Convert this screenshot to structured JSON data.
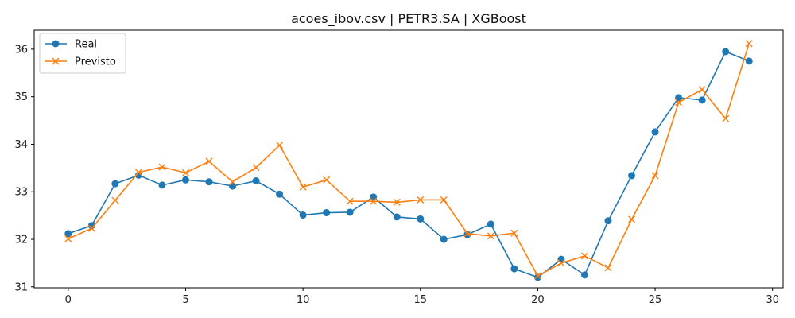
{
  "chart_data": {
    "type": "line",
    "title": "acoes_ibov.csv | PETR3.SA | XGBoost",
    "xlabel": "",
    "ylabel": "",
    "xlim": [
      -1.45,
      30.45
    ],
    "ylim": [
      30.98,
      36.4
    ],
    "x_ticks": [
      0,
      5,
      10,
      15,
      20,
      25,
      30
    ],
    "y_ticks": [
      31,
      32,
      33,
      34,
      35,
      36
    ],
    "grid": false,
    "legend_position": "top-left",
    "x": [
      0,
      1,
      2,
      3,
      4,
      5,
      6,
      7,
      8,
      9,
      10,
      11,
      12,
      13,
      14,
      15,
      16,
      17,
      18,
      19,
      20,
      21,
      22,
      23,
      24,
      25,
      26,
      27,
      28,
      29
    ],
    "series": [
      {
        "name": "Real",
        "color": "#1f77b4",
        "marker": "circle",
        "values": [
          32.12,
          32.29,
          33.17,
          33.35,
          33.14,
          33.25,
          33.21,
          33.12,
          33.23,
          32.95,
          32.51,
          32.56,
          32.57,
          32.89,
          32.47,
          32.43,
          32.0,
          32.1,
          32.32,
          31.38,
          31.2,
          31.58,
          31.25,
          32.39,
          33.34,
          34.26,
          34.98,
          34.93,
          35.95,
          35.75
        ]
      },
      {
        "name": "Previsto",
        "color": "#ff7f0e",
        "marker": "x",
        "values": [
          32.01,
          32.23,
          32.82,
          33.41,
          33.52,
          33.4,
          33.64,
          33.21,
          33.51,
          33.98,
          33.1,
          33.25,
          32.8,
          32.8,
          32.78,
          32.83,
          32.83,
          32.12,
          32.07,
          32.13,
          31.23,
          31.5,
          31.65,
          31.4,
          32.42,
          33.34,
          34.88,
          35.15,
          34.54,
          36.12
        ]
      }
    ]
  }
}
